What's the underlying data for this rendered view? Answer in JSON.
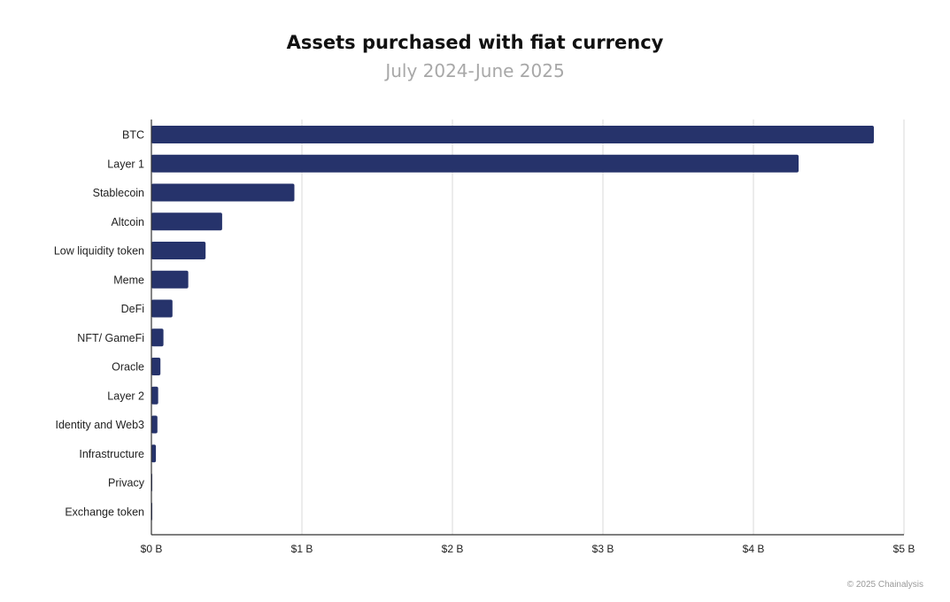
{
  "title": "Assets purchased with fiat currency",
  "subtitle": "July 2024-June 2025",
  "footer": "© 2025 Chainalysis",
  "colors": {
    "bar": "#26336b",
    "grid": "#d9d9d9",
    "axis": "#333333"
  },
  "chart_data": {
    "type": "bar",
    "orientation": "horizontal",
    "title": "Assets purchased with fiat currency",
    "subtitle": "July 2024-June 2025",
    "categories": [
      "BTC",
      "Layer 1",
      "Stablecoin",
      "Altcoin",
      "Low liquidity token",
      "Meme",
      "DeFi",
      "NFT/ GameFi",
      "Oracle",
      "Layer 2",
      "Identity and Web3",
      "Infrastructure",
      "Privacy",
      "Exchange token"
    ],
    "values": [
      4.8,
      4.3,
      0.95,
      0.47,
      0.36,
      0.245,
      0.14,
      0.08,
      0.06,
      0.045,
      0.04,
      0.03,
      0.003,
      0.002
    ],
    "unit": "B",
    "xlim": [
      0,
      5
    ],
    "xticks": [
      0,
      1,
      2,
      3,
      4,
      5
    ],
    "xtick_labels": [
      "$0 B",
      "$1 B",
      "$2 B",
      "$3 B",
      "$4 B",
      "$5 B"
    ],
    "xlabel": "",
    "ylabel": "",
    "grid": true,
    "legend": "none"
  }
}
